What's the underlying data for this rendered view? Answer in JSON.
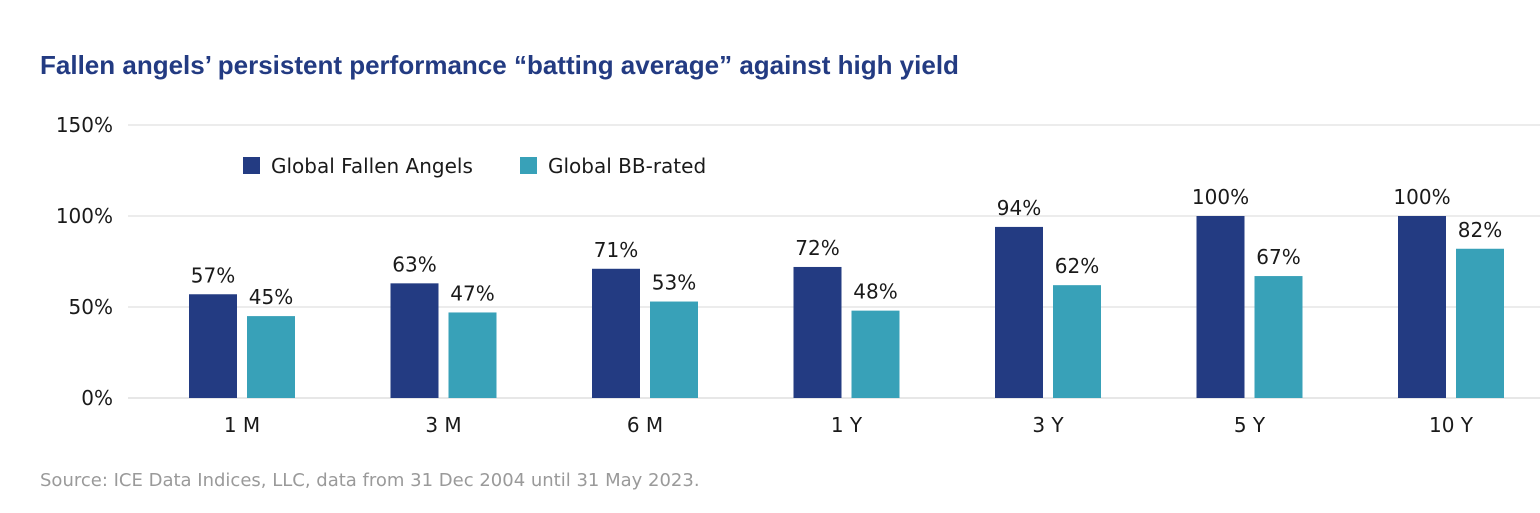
{
  "title": "Fallen angels’ persistent performance “batting average” against high yield",
  "source": "Source: ICE Data Indices, LLC, data from 31 Dec 2004 until 31 May 2023.",
  "colors": {
    "title": "#233b82",
    "series1": "#233b82",
    "series2": "#38a1b8",
    "grid": "#d9d9d9"
  },
  "chart_data": {
    "type": "bar",
    "categories": [
      "1 M",
      "3 M",
      "6 M",
      "1 Y",
      "3 Y",
      "5 Y",
      "10 Y"
    ],
    "series": [
      {
        "name": "Global Fallen Angels",
        "values": [
          57,
          63,
          71,
          72,
          94,
          100,
          100
        ],
        "labels": [
          "57%",
          "63%",
          "71%",
          "72%",
          "94%",
          "100%",
          "100%"
        ]
      },
      {
        "name": "Global BB-rated",
        "values": [
          45,
          47,
          53,
          48,
          62,
          67,
          82
        ],
        "labels": [
          "45%",
          "47%",
          "53%",
          "48%",
          "62%",
          "67%",
          "82%"
        ]
      }
    ],
    "ylim": [
      0,
      150
    ],
    "yticks": [
      0,
      50,
      100,
      150
    ],
    "ytick_labels": [
      "0%",
      "50%",
      "100%",
      "150%"
    ],
    "grid": true,
    "legend_position": "top-left"
  }
}
